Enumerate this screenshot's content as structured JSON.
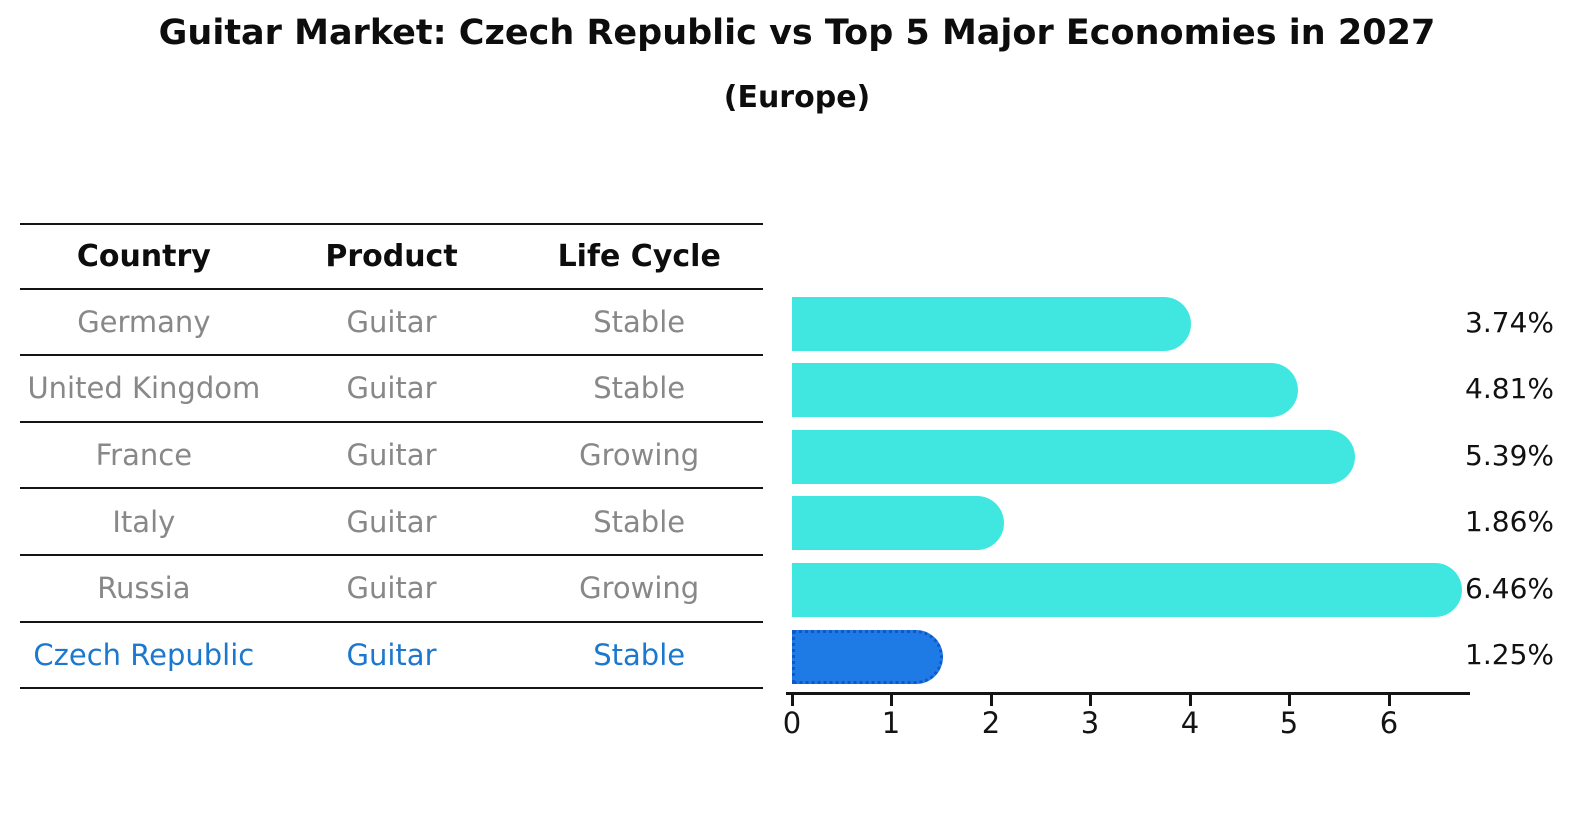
{
  "title": "Guitar Market: Czech Republic vs Top 5 Major Economies in 2027",
  "subtitle": "(Europe)",
  "table": {
    "headers": [
      "Country",
      "Product",
      "Life Cycle"
    ],
    "rows": [
      {
        "country": "Germany",
        "product": "Guitar",
        "life_cycle": "Stable",
        "highlight": false
      },
      {
        "country": "United Kingdom",
        "product": "Guitar",
        "life_cycle": "Stable",
        "highlight": false
      },
      {
        "country": "France",
        "product": "Guitar",
        "life_cycle": "Growing",
        "highlight": false
      },
      {
        "country": "Italy",
        "product": "Guitar",
        "life_cycle": "Stable",
        "highlight": false
      },
      {
        "country": "Russia",
        "product": "Guitar",
        "life_cycle": "Growing",
        "highlight": false
      },
      {
        "country": "Czech Republic",
        "product": "Guitar",
        "life_cycle": "Stable",
        "highlight": true
      }
    ]
  },
  "chart_data": {
    "type": "bar",
    "orientation": "horizontal",
    "title": "Guitar Market: Czech Republic vs Top 5 Major Economies in 2027",
    "subtitle": "(Europe)",
    "categories": [
      "Germany",
      "United Kingdom",
      "France",
      "Italy",
      "Russia",
      "Czech Republic"
    ],
    "values": [
      3.74,
      4.81,
      5.39,
      1.86,
      6.46,
      1.25
    ],
    "value_labels": [
      "3.74%",
      "4.81%",
      "5.39%",
      "1.86%",
      "6.46%",
      "1.25%"
    ],
    "x_ticks": [
      0,
      1,
      2,
      3,
      4,
      5,
      6
    ],
    "xlim": [
      0,
      6.8
    ],
    "xlabel": "",
    "ylabel": "",
    "grid": false,
    "legend": "none",
    "bar_color": "#40E7E0",
    "highlight_index": 5,
    "highlight_bar_color": "#1E7BE6",
    "highlight_border_color": "#1157C9"
  },
  "colors": {
    "background": "#FFFFFF",
    "table_line": "#141414",
    "header_text": "#0D0D0D",
    "row_text": "#888888",
    "highlight_text": "#1C78CE",
    "value_text": "#111111"
  }
}
